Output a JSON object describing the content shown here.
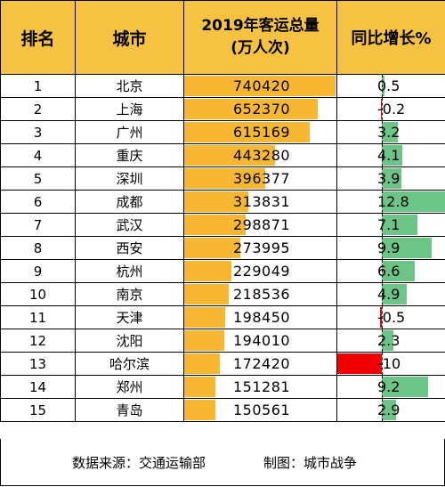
{
  "headers": {
    "rank": "排名",
    "city": "城市",
    "volume_line1": "2019年客运总量",
    "volume_line2": "(万人次)",
    "growth": "同比增长%"
  },
  "rows": [
    {
      "rank": "1",
      "city": "北京",
      "volume": "740420",
      "growth": "0.5"
    },
    {
      "rank": "2",
      "city": "上海",
      "volume": "652370",
      "growth": "-0.2"
    },
    {
      "rank": "3",
      "city": "广州",
      "volume": "615169",
      "growth": "3.2"
    },
    {
      "rank": "4",
      "city": "重庆",
      "volume": "443280",
      "growth": "4.1"
    },
    {
      "rank": "5",
      "city": "深圳",
      "volume": "396377",
      "growth": "3.9"
    },
    {
      "rank": "6",
      "city": "成都",
      "volume": "313831",
      "growth": "12.8"
    },
    {
      "rank": "7",
      "city": "武汉",
      "volume": "298871",
      "growth": "7.1"
    },
    {
      "rank": "8",
      "city": "西安",
      "volume": "273995",
      "growth": "9.9"
    },
    {
      "rank": "9",
      "city": "杭州",
      "volume": "229049",
      "growth": "6.6"
    },
    {
      "rank": "10",
      "city": "南京",
      "volume": "218536",
      "growth": "4.9"
    },
    {
      "rank": "11",
      "city": "天津",
      "volume": "198450",
      "growth": "-0.5"
    },
    {
      "rank": "12",
      "city": "沈阳",
      "volume": "194010",
      "growth": "2.3"
    },
    {
      "rank": "13",
      "city": "哈尔滨",
      "volume": "172420",
      "growth": "-10"
    },
    {
      "rank": "14",
      "city": "郑州",
      "volume": "151281",
      "growth": "9.2"
    },
    {
      "rank": "15",
      "city": "青岛",
      "volume": "150561",
      "growth": "2.9"
    }
  ],
  "footer": {
    "source": "数据来源：交通运输部",
    "maker": "制图：城市战争"
  },
  "colors": {
    "header_bg": "#f5c242",
    "volume_bar": "#f7b733",
    "growth_positive": "#6cc486",
    "growth_negative": "#f00000"
  }
}
